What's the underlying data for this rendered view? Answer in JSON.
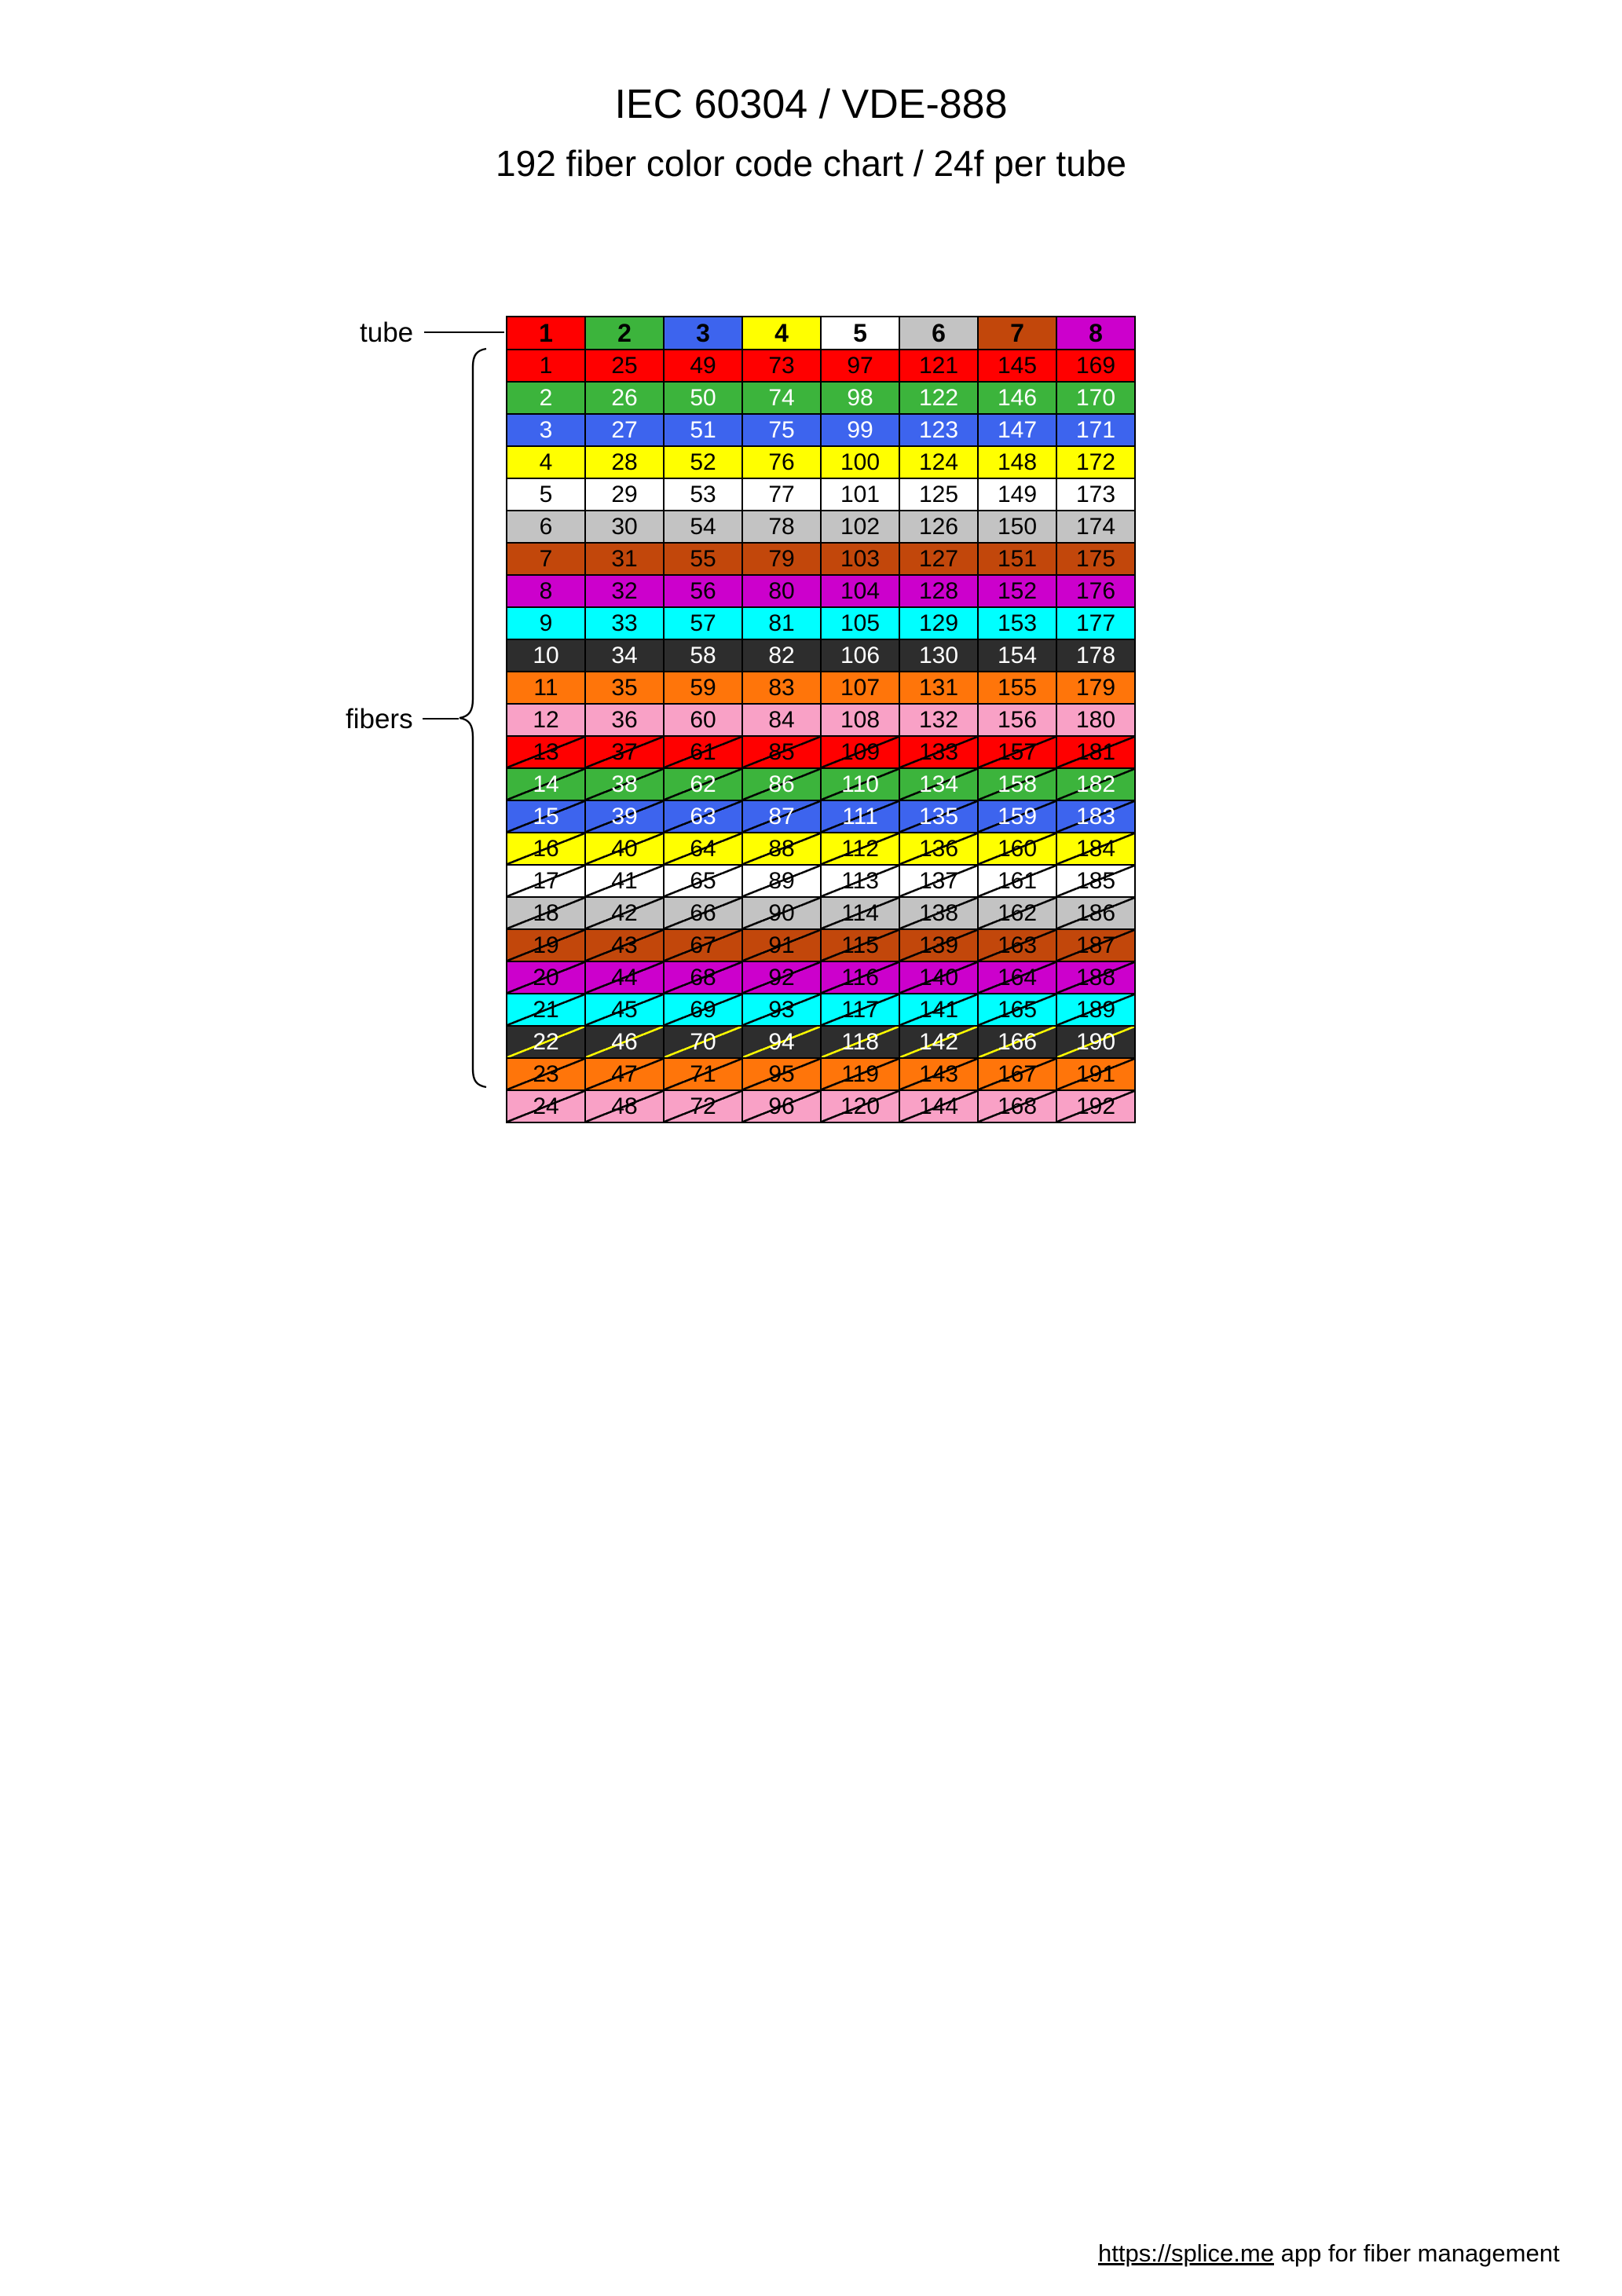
{
  "title": "IEC 60304 / VDE-888",
  "subtitle": "192 fiber color code chart / 24f per tube",
  "labels": {
    "tube": "tube",
    "fibers": "fibers"
  },
  "footer": {
    "link": "https://splice.me",
    "rest": " app for fiber management"
  },
  "palette": {
    "red": "#FF0000",
    "green": "#3CB43C",
    "blue": "#3D64EE",
    "yellow": "#FFFF00",
    "white": "#FFFFFF",
    "grey": "#C3C3C3",
    "brown": "#C2470B",
    "violet": "#CC00CC",
    "turquoise": "#00FFFF",
    "black": "#2D2D2D",
    "orange": "#FF750A",
    "pink": "#F9A1C6"
  },
  "tubes": [
    {
      "label": "1",
      "color": "red"
    },
    {
      "label": "2",
      "color": "green"
    },
    {
      "label": "3",
      "color": "blue"
    },
    {
      "label": "4",
      "color": "yellow"
    },
    {
      "label": "5",
      "color": "white"
    },
    {
      "label": "6",
      "color": "grey"
    },
    {
      "label": "7",
      "color": "brown"
    },
    {
      "label": "8",
      "color": "violet"
    }
  ],
  "fibers": [
    {
      "color": "red",
      "text": "black",
      "striped": false,
      "stripe_color": null,
      "values": [
        1,
        25,
        49,
        73,
        97,
        121,
        145,
        169
      ]
    },
    {
      "color": "green",
      "text": "white",
      "striped": false,
      "stripe_color": null,
      "values": [
        2,
        26,
        50,
        74,
        98,
        122,
        146,
        170
      ]
    },
    {
      "color": "blue",
      "text": "white",
      "striped": false,
      "stripe_color": null,
      "values": [
        3,
        27,
        51,
        75,
        99,
        123,
        147,
        171
      ]
    },
    {
      "color": "yellow",
      "text": "black",
      "striped": false,
      "stripe_color": null,
      "values": [
        4,
        28,
        52,
        76,
        100,
        124,
        148,
        172
      ]
    },
    {
      "color": "white",
      "text": "black",
      "striped": false,
      "stripe_color": null,
      "values": [
        5,
        29,
        53,
        77,
        101,
        125,
        149,
        173
      ]
    },
    {
      "color": "grey",
      "text": "black",
      "striped": false,
      "stripe_color": null,
      "values": [
        6,
        30,
        54,
        78,
        102,
        126,
        150,
        174
      ]
    },
    {
      "color": "brown",
      "text": "black",
      "striped": false,
      "stripe_color": null,
      "values": [
        7,
        31,
        55,
        79,
        103,
        127,
        151,
        175
      ]
    },
    {
      "color": "violet",
      "text": "black",
      "striped": false,
      "stripe_color": null,
      "values": [
        8,
        32,
        56,
        80,
        104,
        128,
        152,
        176
      ]
    },
    {
      "color": "turquoise",
      "text": "black",
      "striped": false,
      "stripe_color": null,
      "values": [
        9,
        33,
        57,
        81,
        105,
        129,
        153,
        177
      ]
    },
    {
      "color": "black",
      "text": "white",
      "striped": false,
      "stripe_color": null,
      "values": [
        10,
        34,
        58,
        82,
        106,
        130,
        154,
        178
      ]
    },
    {
      "color": "orange",
      "text": "black",
      "striped": false,
      "stripe_color": null,
      "values": [
        11,
        35,
        59,
        83,
        107,
        131,
        155,
        179
      ]
    },
    {
      "color": "pink",
      "text": "black",
      "striped": false,
      "stripe_color": null,
      "values": [
        12,
        36,
        60,
        84,
        108,
        132,
        156,
        180
      ]
    },
    {
      "color": "red",
      "text": "black",
      "striped": true,
      "stripe_color": "#000000",
      "values": [
        13,
        37,
        61,
        85,
        109,
        133,
        157,
        181
      ]
    },
    {
      "color": "green",
      "text": "white",
      "striped": true,
      "stripe_color": "#000000",
      "values": [
        14,
        38,
        62,
        86,
        110,
        134,
        158,
        182
      ]
    },
    {
      "color": "blue",
      "text": "white",
      "striped": true,
      "stripe_color": "#000000",
      "values": [
        15,
        39,
        63,
        87,
        111,
        135,
        159,
        183
      ]
    },
    {
      "color": "yellow",
      "text": "black",
      "striped": true,
      "stripe_color": "#000000",
      "values": [
        16,
        40,
        64,
        88,
        112,
        136,
        160,
        184
      ]
    },
    {
      "color": "white",
      "text": "black",
      "striped": true,
      "stripe_color": "#000000",
      "values": [
        17,
        41,
        65,
        89,
        113,
        137,
        161,
        185
      ]
    },
    {
      "color": "grey",
      "text": "black",
      "striped": true,
      "stripe_color": "#000000",
      "values": [
        18,
        42,
        66,
        90,
        114,
        138,
        162,
        186
      ]
    },
    {
      "color": "brown",
      "text": "black",
      "striped": true,
      "stripe_color": "#000000",
      "values": [
        19,
        43,
        67,
        91,
        115,
        139,
        163,
        187
      ]
    },
    {
      "color": "violet",
      "text": "black",
      "striped": true,
      "stripe_color": "#000000",
      "values": [
        20,
        44,
        68,
        92,
        116,
        140,
        164,
        188
      ]
    },
    {
      "color": "turquoise",
      "text": "black",
      "striped": true,
      "stripe_color": "#000000",
      "values": [
        21,
        45,
        69,
        93,
        117,
        141,
        165,
        189
      ]
    },
    {
      "color": "black",
      "text": "white",
      "striped": true,
      "stripe_color": "#FFFF00",
      "values": [
        22,
        46,
        70,
        94,
        118,
        142,
        166,
        190
      ]
    },
    {
      "color": "orange",
      "text": "black",
      "striped": true,
      "stripe_color": "#000000",
      "values": [
        23,
        47,
        71,
        95,
        119,
        143,
        167,
        191
      ]
    },
    {
      "color": "pink",
      "text": "black",
      "striped": true,
      "stripe_color": "#000000",
      "values": [
        24,
        48,
        72,
        96,
        120,
        144,
        168,
        192
      ]
    }
  ]
}
